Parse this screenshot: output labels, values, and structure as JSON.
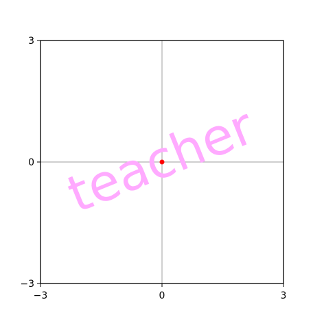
{
  "chart_data": {
    "type": "scatter",
    "title": "",
    "xlabel": "",
    "ylabel": "",
    "xlim": [
      -3,
      3
    ],
    "ylim": [
      -3,
      3
    ],
    "x_ticks": [
      -3,
      0,
      3
    ],
    "y_ticks": [
      -3,
      0,
      3
    ],
    "x_tick_labels": [
      "−3",
      "0",
      "3"
    ],
    "y_tick_labels": [
      "−3",
      "0",
      "3"
    ],
    "grid": false,
    "reference_lines": {
      "x": 0,
      "y": 0,
      "color": "#b0b0b0"
    },
    "points": [
      {
        "x": 0,
        "y": 0,
        "color": "#ff0000"
      }
    ],
    "annotation": {
      "text": "teacher",
      "color": "#ffaaff",
      "rotation_degrees": -22
    }
  }
}
